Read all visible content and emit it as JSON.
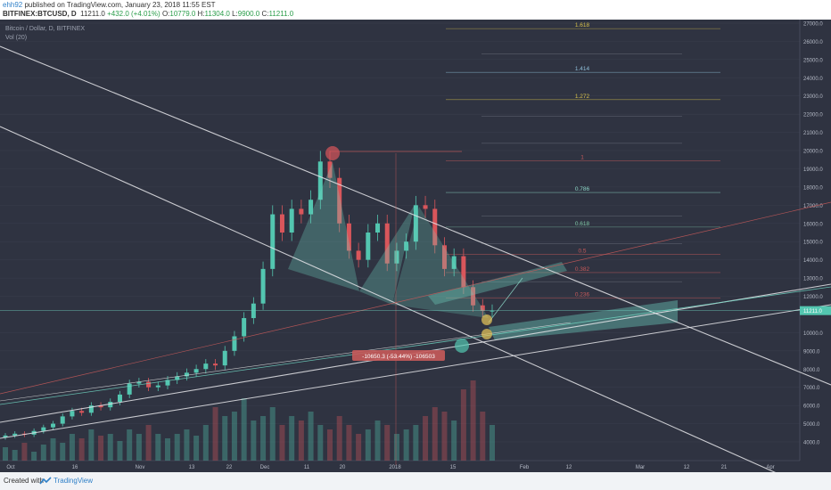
{
  "header": {
    "username": "ehh92",
    "published": "published on TradingView.com, January 23, 2018 11:55 EST",
    "symbol": "BITFINEX:BTCUSD, D",
    "last": "11211.0",
    "change": "+432.0 (+4.01%)",
    "open_label": "O:",
    "open": "10779.0",
    "high_label": "H:",
    "high": "11304.0",
    "low_label": "L:",
    "low": "9900.0",
    "close_label": "C:",
    "close": "11211.0"
  },
  "legend": {
    "title": "Bitcoin / Dollar, D, BITFINEX",
    "volume": "Vol (20)"
  },
  "annotations": {
    "measure_label": "-10650.3 (-53.44%) -106503",
    "price_tag": "11211.0"
  },
  "fib_levels": [
    {
      "label": "1.618",
      "value": 26700,
      "color": "#d9c24a"
    },
    {
      "label": "1.414",
      "value": 24300,
      "color": "#8fbfd9"
    },
    {
      "label": "1.272",
      "value": 22800,
      "color": "#d9c24a"
    },
    {
      "label": "1",
      "value": 19450,
      "color": "#c85a5a"
    },
    {
      "label": "0.786",
      "value": 17700,
      "color": "#8fd9c9"
    },
    {
      "label": "0.618",
      "value": 15800,
      "color": "#7fc9a6"
    },
    {
      "label": "0.5",
      "value": 14300,
      "color": "#c85a5a"
    },
    {
      "label": "0.382",
      "value": 13300,
      "color": "#c85a5a"
    },
    {
      "label": "0.236",
      "value": 11900,
      "color": "#c85a5a"
    }
  ],
  "chart_data": {
    "type": "candlestick",
    "title": "Bitcoin / Dollar, D, BITFINEX",
    "y_ticks": [
      "27000.0",
      "26000.0",
      "25000.0",
      "24000.0",
      "23000.0",
      "22000.0",
      "21000.0",
      "20000.0",
      "19000.0",
      "18000.0",
      "17000.0",
      "16000.0",
      "15000.0",
      "14000.0",
      "13000.0",
      "12000.0",
      "11211.0",
      "10000.0",
      "9000.0",
      "8000.0",
      "7000.0",
      "6000.0",
      "5000.0",
      "4000.0"
    ],
    "x_ticks": [
      "Oct",
      "16",
      "Nov",
      "13",
      "22",
      "Dec",
      "11",
      "20",
      "2018",
      "15",
      "Feb",
      "12",
      "Mar",
      "12",
      "21",
      "Apr"
    ],
    "close_series": [
      4350,
      4450,
      4400,
      4600,
      4800,
      5000,
      5400,
      5700,
      5600,
      6000,
      5900,
      6200,
      6600,
      7200,
      7300,
      7000,
      7100,
      7400,
      7600,
      7800,
      8000,
      8300,
      8200,
      9000,
      9800,
      10800,
      11600,
      13500,
      16500,
      15500,
      16800,
      16500,
      17300,
      19400,
      18500,
      16000,
      14500,
      14000,
      15500,
      16000,
      13800,
      14500,
      15000,
      17000,
      16800,
      14800,
      13500,
      14200,
      12500,
      11500,
      11200,
      11211
    ],
    "ylim": [
      3500,
      27500
    ]
  },
  "colors": {
    "bg": "#2f3341",
    "up": "#53c6b0",
    "down": "#d9565b",
    "grid": "#3a3f4e",
    "text": "#b5bac6"
  }
}
